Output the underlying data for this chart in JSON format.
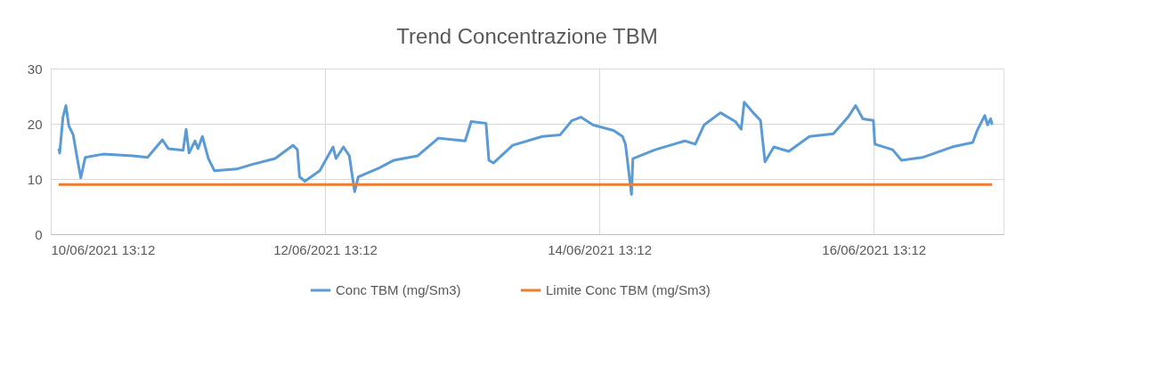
{
  "chart_data": {
    "type": "line",
    "title": "Trend Concentrazione TBM",
    "legend": "bottom",
    "grid": true,
    "xlim": [
      "2021-06-10T13:12",
      "2021-06-17T11:55"
    ],
    "xticks": [
      {
        "value": "2021-06-10T13:12",
        "label": "10/06/2021 13:12"
      },
      {
        "value": "2021-06-12T13:12",
        "label": "12/06/2021 13:12"
      },
      {
        "value": "2021-06-14T13:12",
        "label": "14/06/2021 13:12"
      },
      {
        "value": "2021-06-16T13:12",
        "label": "16/06/2021 13:12"
      }
    ],
    "ylim": [
      0,
      30
    ],
    "yticks": [
      0,
      10,
      20,
      30
    ],
    "series": [
      {
        "name": "Conc TBM (mg/Sm3)",
        "color": "#5b9bd5",
        "x": [
          "2021-06-10T14:36",
          "2021-06-10T14:46",
          "2021-06-10T15:20",
          "2021-06-10T15:51",
          "2021-06-10T16:22",
          "2021-06-10T17:08",
          "2021-06-10T17:40",
          "2021-06-10T18:27",
          "2021-06-10T19:14",
          "2021-06-10T22:21",
          "2021-06-11T03:32",
          "2021-06-11T06:08",
          "2021-06-11T08:44",
          "2021-06-11T09:46",
          "2021-06-11T12:22",
          "2021-06-11T12:53",
          "2021-06-11T13:24",
          "2021-06-11T14:27",
          "2021-06-11T14:58",
          "2021-06-11T15:44",
          "2021-06-11T16:47",
          "2021-06-11T17:50",
          "2021-06-11T21:43",
          "2021-06-12T00:19",
          "2021-06-12T04:28",
          "2021-06-12T07:35",
          "2021-06-12T08:22",
          "2021-06-12T08:44",
          "2021-06-12T09:40",
          "2021-06-12T12:16",
          "2021-06-12T14:36",
          "2021-06-12T15:07",
          "2021-06-12T16:25",
          "2021-06-12T17:27",
          "2021-06-12T17:59",
          "2021-06-12T18:23",
          "2021-06-12T19:01",
          "2021-06-12T22:40",
          "2021-06-13T01:15",
          "2021-06-13T05:25",
          "2021-06-13T09:02",
          "2021-06-13T13:43",
          "2021-06-13T14:46",
          "2021-06-13T17:22",
          "2021-06-13T17:52",
          "2021-06-13T18:39",
          "2021-06-13T22:02",
          "2021-06-14T03:13",
          "2021-06-14T06:20",
          "2021-06-14T08:25",
          "2021-06-14T09:58",
          "2021-06-14T12:04",
          "2021-06-14T15:41",
          "2021-06-14T17:15",
          "2021-06-14T17:46",
          "2021-06-14T18:49",
          "2021-06-14T19:04",
          "2021-06-14T22:58",
          "2021-06-15T04:10",
          "2021-06-15T05:59",
          "2021-06-15T07:32",
          "2021-06-15T10:23",
          "2021-06-15T13:00",
          "2021-06-15T14:01",
          "2021-06-15T14:33",
          "2021-06-15T16:07",
          "2021-06-15T17:24",
          "2021-06-15T18:11",
          "2021-06-15T19:44",
          "2021-06-15T22:20",
          "2021-06-16T01:58",
          "2021-06-16T06:08",
          "2021-06-16T08:43",
          "2021-06-16T10:02",
          "2021-06-16T11:19",
          "2021-06-16T13:09",
          "2021-06-16T13:24",
          "2021-06-16T16:31",
          "2021-06-16T18:04",
          "2021-06-16T21:43",
          "2021-06-17T02:55",
          "2021-06-17T06:32",
          "2021-06-17T07:19",
          "2021-06-17T08:38",
          "2021-06-17T09:08",
          "2021-06-17T09:40",
          "2021-06-17T09:56"
        ],
        "values": [
          15.5,
          14.7,
          21.2,
          23.3,
          19.6,
          18.0,
          14.7,
          10.2,
          13.9,
          14.5,
          14.2,
          13.9,
          17.1,
          15.5,
          15.2,
          19.0,
          14.7,
          16.9,
          15.5,
          17.7,
          13.7,
          11.5,
          11.8,
          12.6,
          13.7,
          16.1,
          15.3,
          10.4,
          9.6,
          11.5,
          15.8,
          13.7,
          15.8,
          14.2,
          10.4,
          7.7,
          10.4,
          12.0,
          13.4,
          14.2,
          17.4,
          16.9,
          20.4,
          20.1,
          13.4,
          12.9,
          16.1,
          17.7,
          18.0,
          20.6,
          21.2,
          19.8,
          18.8,
          17.7,
          16.3,
          7.2,
          13.7,
          15.3,
          16.9,
          16.3,
          19.8,
          22.0,
          20.4,
          19.0,
          23.9,
          22.0,
          20.6,
          13.1,
          15.8,
          15.0,
          17.7,
          18.2,
          21.2,
          23.3,
          20.9,
          20.6,
          16.3,
          15.3,
          13.4,
          13.9,
          15.8,
          16.6,
          18.8,
          21.5,
          19.8,
          20.9,
          19.8
        ]
      },
      {
        "name": "Limite Conc TBM (mg/Sm3)",
        "color": "#ed7d31",
        "x": [
          "2021-06-10T14:36",
          "2021-06-17T09:56"
        ],
        "values": [
          9,
          9
        ]
      }
    ]
  }
}
